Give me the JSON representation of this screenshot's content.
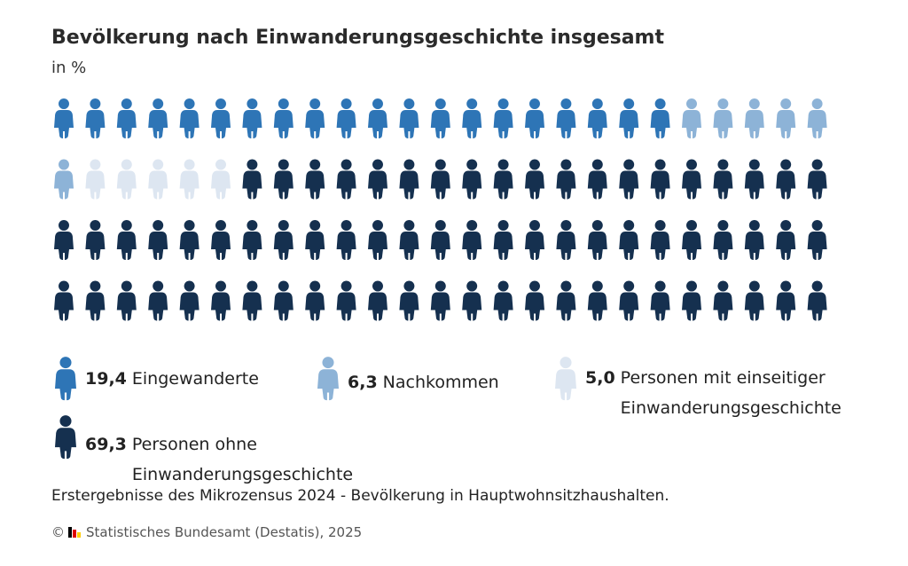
{
  "title": "Bevölkerung nach Einwanderungsgeschichte insgesamt",
  "subtitle": "in %",
  "chart_data": {
    "type": "pictogram",
    "title": "Bevölkerung nach Einwanderungsgeschichte insgesamt",
    "unit": "in %",
    "grid": {
      "rows": 4,
      "columns": 25,
      "icon": "person-icon"
    },
    "series": [
      {
        "name": "Eingewanderte",
        "value": 19.4,
        "value_label": "19,4",
        "icons": 20,
        "color": "#2e75b6"
      },
      {
        "name": "Nachkommen",
        "value": 6.3,
        "value_label": "6,3",
        "icons": 6,
        "color": "#8db3d7"
      },
      {
        "name": "Personen mit einseitiger Einwanderungsgeschichte",
        "value": 5.0,
        "value_label": "5,0",
        "icons": 5,
        "color": "#dde6f1"
      },
      {
        "name": "Personen ohne Einwanderungsgeschichte",
        "value": 69.3,
        "value_label": "69,3",
        "icons": 69,
        "color": "#15304f"
      }
    ]
  },
  "note": "Erstergebnisse des Mikrozensus 2024 - Bevölkerung in Hauptwohnsitzhaushalten.",
  "source": {
    "copyright": "©",
    "text": "Statistisches Bundesamt (Destatis), 2025",
    "logo_colors": [
      "#000000",
      "#dd0000",
      "#ffcc00"
    ]
  }
}
